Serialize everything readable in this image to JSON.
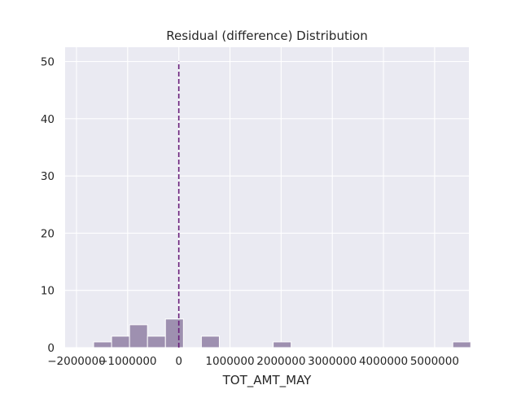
{
  "chart_data": {
    "type": "bar",
    "title": "Residual (difference) Distribution",
    "xlabel": "TOT_AMT_MAY",
    "ylabel": "",
    "xlim": [
      -2222000,
      5670000
    ],
    "ylim": [
      0,
      52.5
    ],
    "x_ticks": [
      -2000000,
      -1000000,
      0,
      1000000,
      2000000,
      3000000,
      4000000,
      5000000
    ],
    "x_tick_labels": [
      "−2000000",
      "−1000000",
      "0",
      "1000000",
      "2000000",
      "3000000",
      "4000000",
      "5000000"
    ],
    "y_ticks": [
      0,
      10,
      20,
      30,
      40,
      50
    ],
    "y_tick_labels": [
      "0",
      "10",
      "20",
      "30",
      "40",
      "50"
    ],
    "grid": true,
    "histogram": {
      "bin_start": -1665000,
      "bin_width": 351000,
      "counts": [
        1,
        2,
        4,
        2,
        5,
        0,
        2,
        0,
        0,
        0,
        1,
        0,
        0,
        0,
        0,
        0,
        0,
        0,
        0,
        0,
        1
      ]
    },
    "reference_line": {
      "x": 0,
      "ymax": 50,
      "style": "dashed"
    },
    "colors": {
      "plot_background": "#eaeaf2",
      "grid": "#ffffff",
      "bar_fill": "#9e90b0",
      "bar_edge": "#ffffff",
      "reference_line": "#6a1f7a",
      "text": "#262626"
    }
  }
}
